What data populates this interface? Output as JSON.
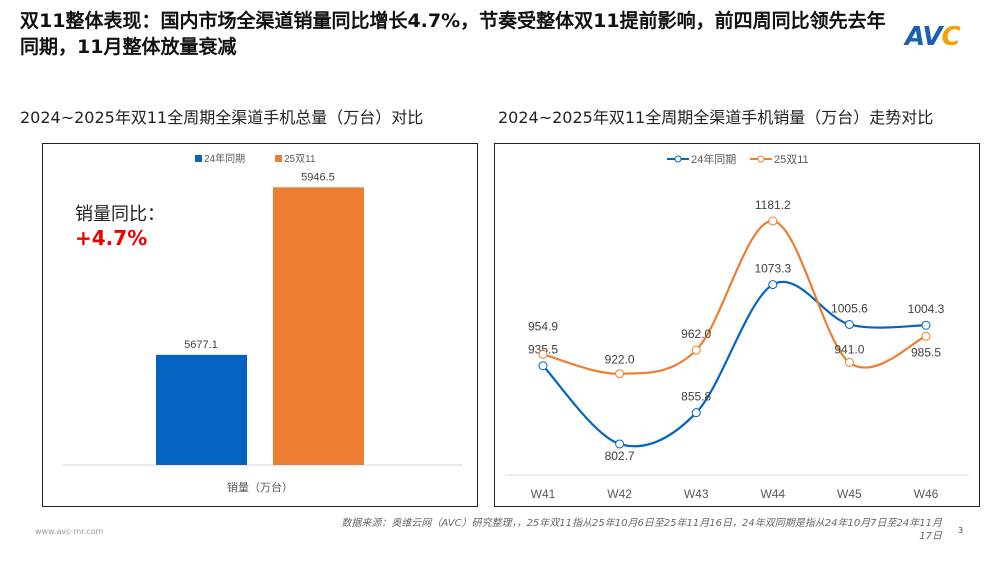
{
  "header": {
    "title": "双11整体表现：国内市场全渠道销量同比增长4.7%，节奏受整体双11提前影响，前四周同比领先去年同期，11月整体放量衰减",
    "logo": "AVC"
  },
  "footer": {
    "website": "www.avc-mr.com",
    "source": "数据来源：奥维云网（AVC）研究整理，，25年双11指从25年10月6日至25年11月16日，24年双同期是指从24年10月7日至24年11月17日",
    "page": "3"
  },
  "colors": {
    "s24": "#0563c1",
    "s25": "#ed7d31"
  },
  "annotation": {
    "label": "销量同比：",
    "value": "+4.7%"
  },
  "chart_data": [
    {
      "type": "bar",
      "title": "2024~2025年双11全周期全渠道手机总量（万台）对比",
      "categories": [
        "销量（万台）"
      ],
      "series": [
        {
          "name": "24年同期",
          "values": [
            5677.1
          ]
        },
        {
          "name": "25双11",
          "values": [
            5946.5
          ]
        }
      ],
      "ylim": [
        5500,
        6000
      ],
      "legend": "top",
      "grid": false
    },
    {
      "type": "line",
      "title": "2024~2025年双11全周期全渠道手机销量（万台）走势对比",
      "x": [
        "W41",
        "W42",
        "W43",
        "W44",
        "W45",
        "W46"
      ],
      "series": [
        {
          "name": "24年同期",
          "values": [
            935.5,
            802.7,
            855.8,
            1073.3,
            1005.6,
            1004.3
          ]
        },
        {
          "name": "25双11",
          "values": [
            954.9,
            922.0,
            962.0,
            1181.2,
            941.0,
            985.5
          ]
        }
      ],
      "ylim": [
        750,
        1250
      ],
      "legend": "top",
      "grid": false
    }
  ]
}
